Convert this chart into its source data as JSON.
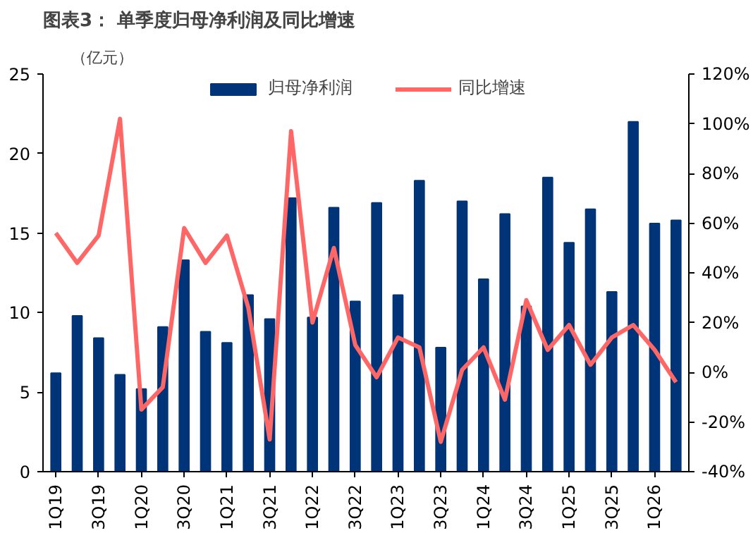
{
  "chart_data": {
    "type": "bar",
    "title": "图表3：  单季度归母净利润及同比增速",
    "ylabel": "（亿元）",
    "categories": [
      "1Q19",
      null,
      "3Q19",
      null,
      "1Q20",
      null,
      "3Q20",
      null,
      "1Q21",
      null,
      "3Q21",
      null,
      "1Q22",
      null,
      "3Q22",
      null,
      "1Q23",
      null,
      "3Q23",
      null,
      "1Q24",
      null,
      "3Q24",
      null,
      "1Q25",
      null,
      "3Q25",
      null,
      "1Q26",
      null
    ],
    "series": [
      {
        "name": "归母净利润",
        "color": "#003478",
        "values": [
          6.2,
          9.8,
          8.4,
          6.1,
          5.2,
          9.1,
          13.3,
          8.8,
          8.1,
          11.1,
          9.6,
          17.2,
          9.7,
          16.6,
          10.7,
          16.9,
          11.1,
          18.3,
          7.8,
          17.0,
          12.1,
          16.2,
          10.4,
          18.5,
          14.4,
          16.5,
          11.3,
          22.0,
          15.6,
          15.8
        ]
      },
      {
        "name": "同比增速",
        "type": "line",
        "axis": "y2",
        "color": "#ff6666",
        "values": [
          56,
          44,
          55,
          102,
          -15,
          -6,
          58,
          44,
          55,
          26,
          -27,
          97,
          20,
          50,
          11,
          -2,
          14,
          10,
          -28,
          1,
          10,
          -11,
          29,
          9,
          19,
          3,
          14,
          19,
          9,
          -4
        ]
      }
    ],
    "ylim": [
      0,
      25
    ],
    "yticks": [
      0,
      5,
      10,
      15,
      20,
      25
    ],
    "y2lim": [
      -40,
      120
    ],
    "y2ticks": [
      {
        "value": -40,
        "label": "-40%"
      },
      {
        "value": -20,
        "label": "-20%"
      },
      {
        "value": 0,
        "label": "0%"
      },
      {
        "value": 20,
        "label": "20%"
      },
      {
        "value": 40,
        "label": "40%"
      },
      {
        "value": 60,
        "label": "60%"
      },
      {
        "value": 80,
        "label": "80%"
      },
      {
        "value": 100,
        "label": "100%"
      },
      {
        "value": 120,
        "label": "120%"
      }
    ],
    "legend": "top",
    "grid": false
  }
}
